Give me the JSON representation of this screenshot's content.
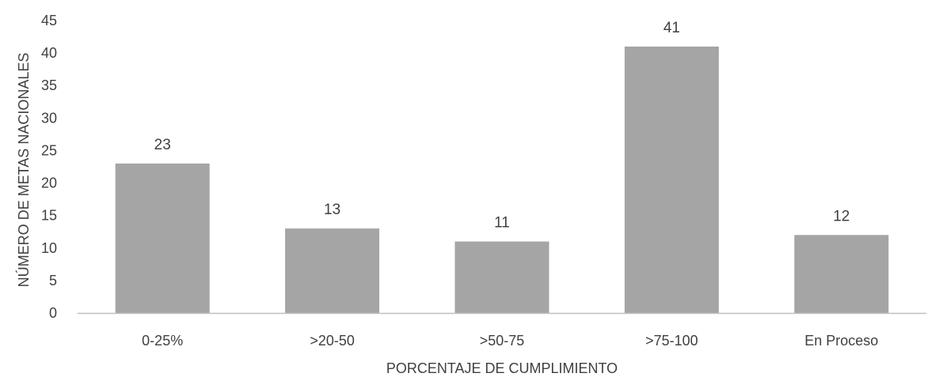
{
  "chart_data": {
    "type": "bar",
    "categories": [
      "0-25%",
      ">20-50",
      ">50-75",
      ">75-100",
      "En Proceso"
    ],
    "values": [
      23,
      13,
      11,
      41,
      12
    ],
    "xlabel": "PORCENTAJE DE CUMPLIMIENTO",
    "ylabel": "NÚMERO DE METAS NACIONALES",
    "ylim": [
      0,
      45
    ],
    "yticks": [
      0,
      5,
      10,
      15,
      20,
      25,
      30,
      35,
      40,
      45
    ],
    "grid": false,
    "legend": "none",
    "data_labels": true,
    "bar_color": "#a5a5a5",
    "axis_color": "#bfbfbf",
    "text_color": "#404040"
  }
}
